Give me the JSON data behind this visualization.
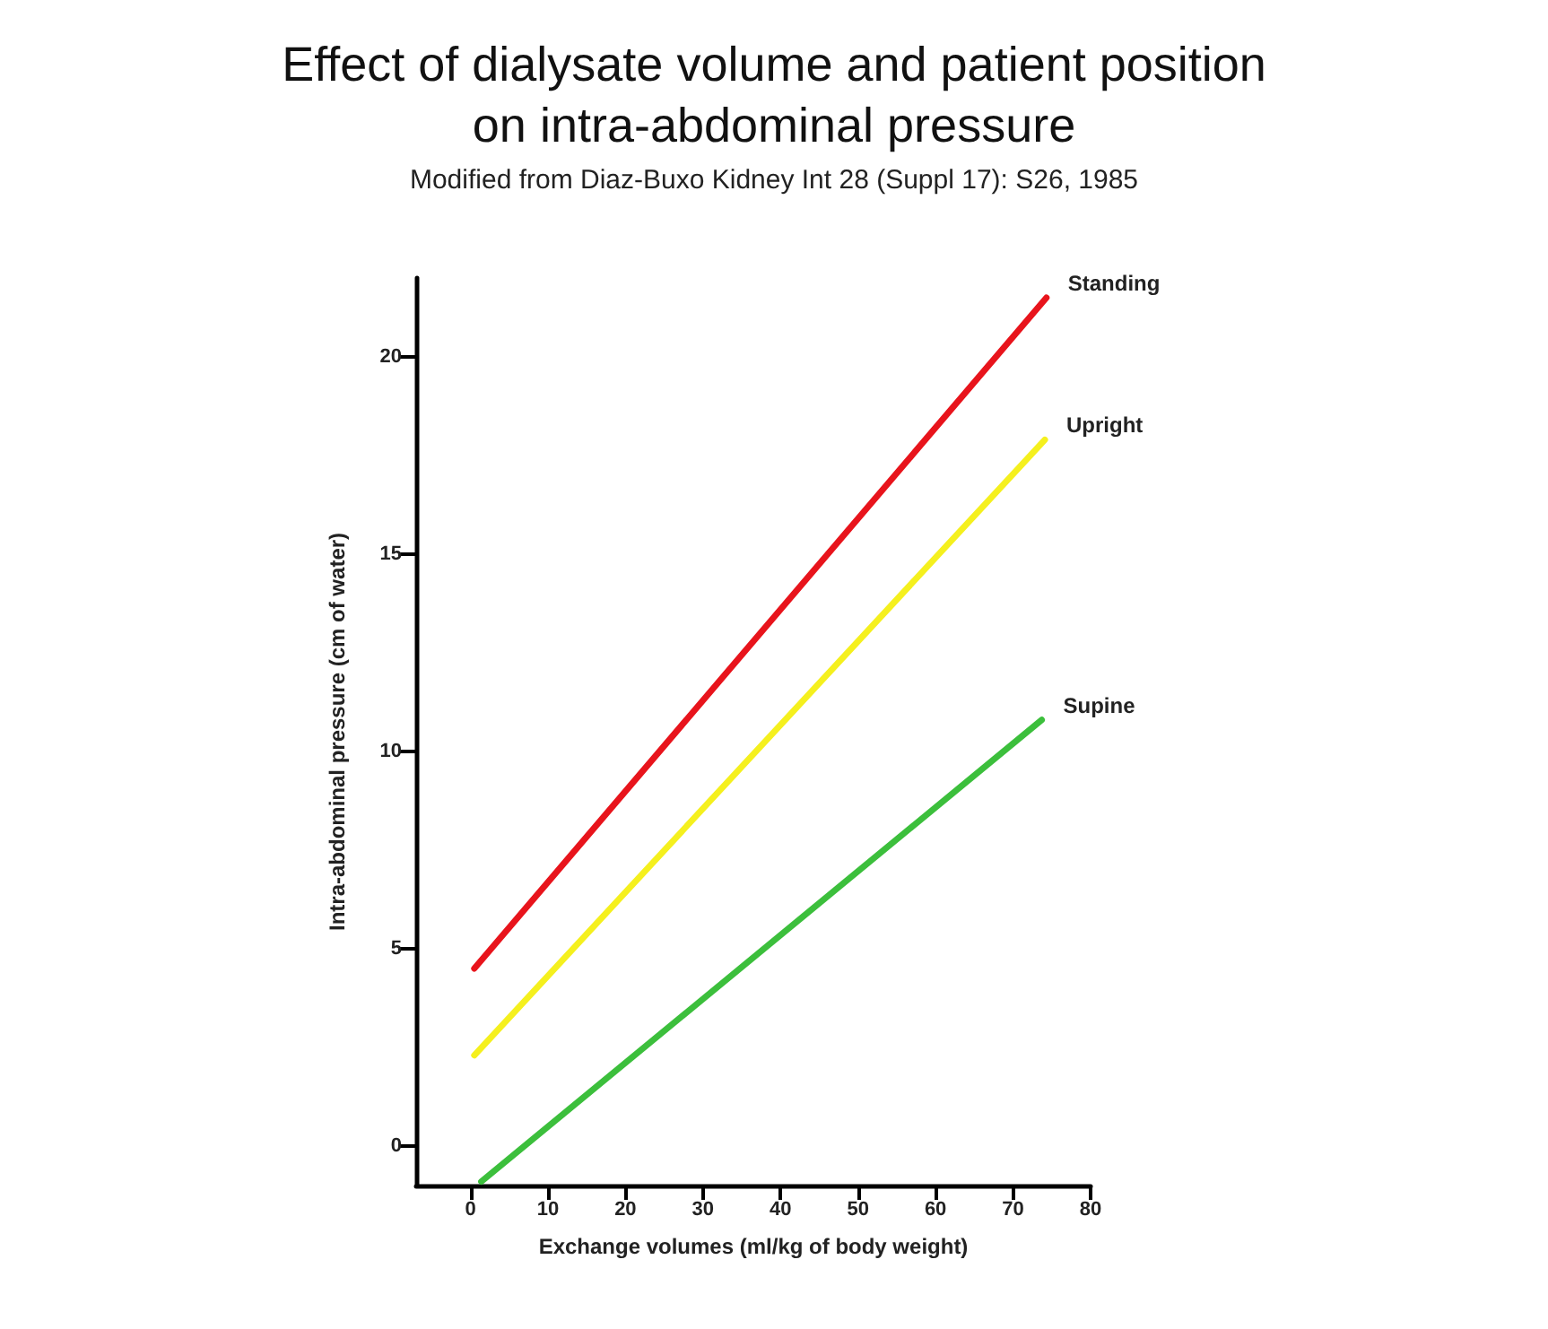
{
  "chart_data": {
    "type": "line",
    "title": "Effect of dialysate volume and patient position\non intra-abdominal pressure",
    "subtitle": "Modified from Diaz-Buxo Kidney Int 28 (Suppl 17): S26, 1985",
    "xlabel": "Exchange volumes (ml/kg of body weight)",
    "ylabel": "Intra-abdominal pressure (cm of water)",
    "series": [
      {
        "name": "Standing",
        "color": "#e8141c",
        "x": [
          0.5,
          74.3
        ],
        "values": [
          4.5,
          21.5
        ]
      },
      {
        "name": "Upright",
        "color": "#f5f01e",
        "x": [
          0.5,
          74.1
        ],
        "values": [
          2.3,
          17.9
        ]
      },
      {
        "name": "Supine",
        "color": "#3cbf3c",
        "x": [
          1.4,
          73.7
        ],
        "values": [
          -0.9,
          10.8
        ]
      }
    ],
    "xlim": [
      -7,
      80
    ],
    "xticks": [
      0,
      10,
      20,
      30,
      40,
      50,
      60,
      70,
      80
    ],
    "ylim": [
      -1,
      22
    ],
    "yticks": [
      0,
      5,
      10,
      15,
      20
    ],
    "grid": false,
    "legend": false,
    "marker": "none",
    "line_style": "solid"
  }
}
